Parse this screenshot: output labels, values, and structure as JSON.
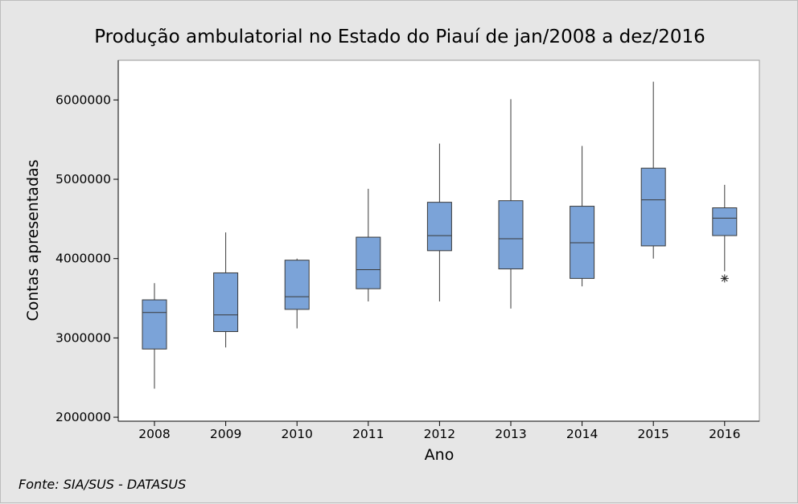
{
  "chart_data": {
    "type": "boxplot",
    "title": "Produção ambulatorial no Estado do Piauí de jan/2008 a dez/2016",
    "xlabel": "Ano",
    "ylabel": "Contas apresentadas",
    "categories": [
      "2008",
      "2009",
      "2010",
      "2011",
      "2012",
      "2013",
      "2014",
      "2015",
      "2016"
    ],
    "y_ticks": [
      2000000,
      3000000,
      4000000,
      5000000,
      6000000
    ],
    "y_tick_labels": [
      "2000000",
      "3000000",
      "4000000",
      "5000000",
      "6000000"
    ],
    "ylim": [
      1950000,
      6500000
    ],
    "boxes": [
      {
        "category": "2008",
        "min": 2360000,
        "q1": 2860000,
        "median": 3320000,
        "q3": 3480000,
        "max": 3690000,
        "outliers": []
      },
      {
        "category": "2009",
        "min": 2880000,
        "q1": 3080000,
        "median": 3290000,
        "q3": 3820000,
        "max": 4330000,
        "outliers": []
      },
      {
        "category": "2010",
        "min": 3120000,
        "q1": 3360000,
        "median": 3520000,
        "q3": 3980000,
        "max": 4000000,
        "outliers": []
      },
      {
        "category": "2011",
        "min": 3460000,
        "q1": 3620000,
        "median": 3860000,
        "q3": 4270000,
        "max": 4880000,
        "outliers": []
      },
      {
        "category": "2012",
        "min": 3460000,
        "q1": 4100000,
        "median": 4290000,
        "q3": 4710000,
        "max": 5450000,
        "outliers": []
      },
      {
        "category": "2013",
        "min": 3370000,
        "q1": 3870000,
        "median": 4250000,
        "q3": 4730000,
        "max": 6010000,
        "outliers": []
      },
      {
        "category": "2014",
        "min": 3650000,
        "q1": 3750000,
        "median": 4200000,
        "q3": 4660000,
        "max": 5420000,
        "outliers": []
      },
      {
        "category": "2015",
        "min": 4000000,
        "q1": 4160000,
        "median": 4740000,
        "q3": 5140000,
        "max": 6230000,
        "outliers": []
      },
      {
        "category": "2016",
        "min": 3840000,
        "q1": 4290000,
        "median": 4510000,
        "q3": 4640000,
        "max": 4930000,
        "outliers": [
          3750000
        ]
      }
    ],
    "grid": false,
    "colors": {
      "box_fill": "#7ba3d8",
      "box_stroke": "#3a3a3a",
      "plot_bg": "#ffffff",
      "page_bg": "#e6e6e6"
    }
  },
  "source": "Fonte: SIA/SUS - DATASUS"
}
